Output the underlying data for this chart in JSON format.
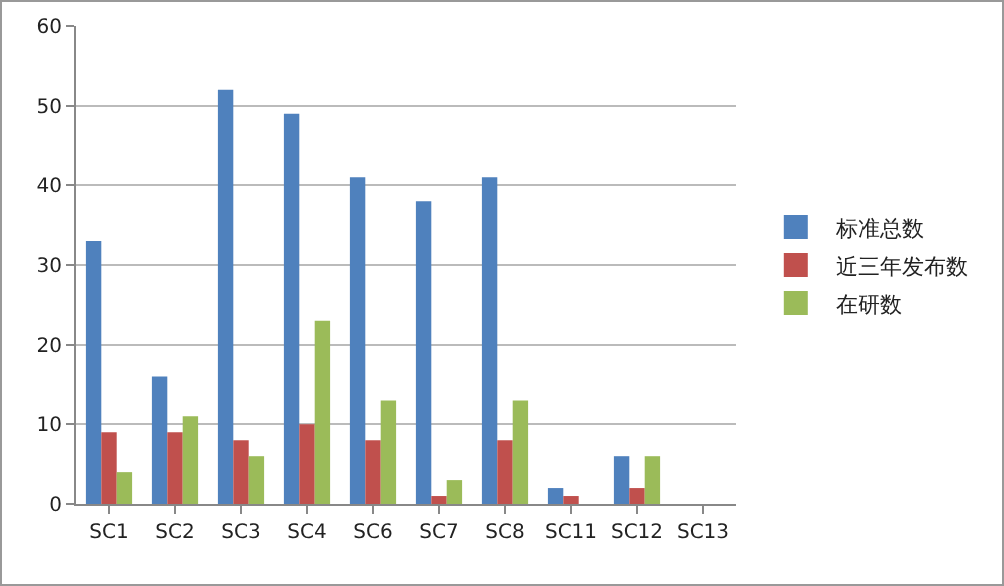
{
  "chart_data": {
    "type": "bar",
    "categories": [
      "SC1",
      "SC2",
      "SC3",
      "SC4",
      "SC6",
      "SC7",
      "SC8",
      "SC11",
      "SC12",
      "SC13"
    ],
    "series": [
      {
        "name": "标准总数",
        "color": "#4f81bd",
        "values": [
          33,
          16,
          52,
          49,
          41,
          38,
          41,
          2,
          6,
          0
        ]
      },
      {
        "name": "近三年发布数",
        "color": "#c0504d",
        "values": [
          9,
          9,
          8,
          10,
          8,
          1,
          8,
          1,
          2,
          0
        ]
      },
      {
        "name": "在研数",
        "color": "#9bbb59",
        "values": [
          4,
          11,
          6,
          23,
          13,
          3,
          13,
          0,
          6,
          0
        ]
      }
    ],
    "ylim": [
      0,
      60
    ],
    "yticks": [
      0,
      10,
      20,
      30,
      40,
      50,
      60
    ],
    "grid": "y",
    "legend": "right"
  }
}
